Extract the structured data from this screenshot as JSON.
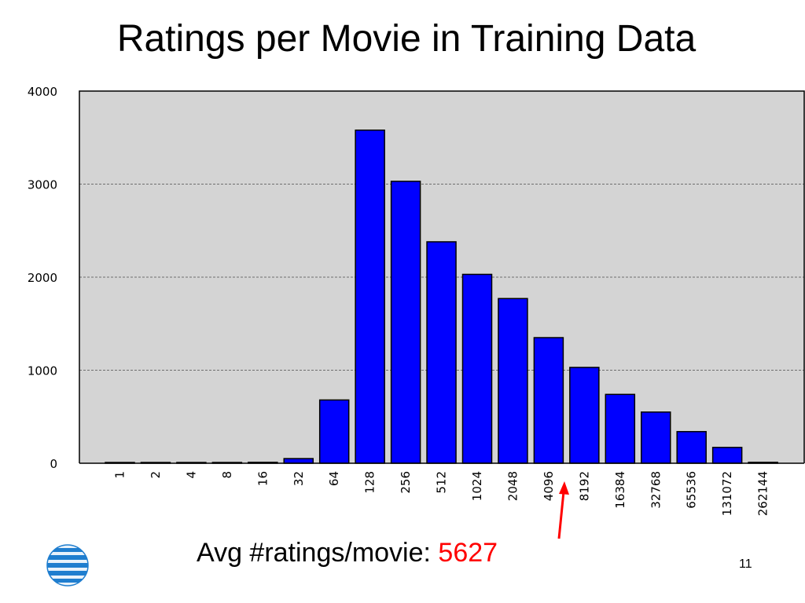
{
  "slide": {
    "title": "Ratings per Movie in Training Data",
    "caption_prefix": "Avg #ratings/movie: ",
    "caption_value": "5627",
    "page_number": "11"
  },
  "colors": {
    "plot_background": "#d4d4d4",
    "bar_fill": "#0000ff",
    "bar_stroke": "#000000",
    "arrow": "#ff0000",
    "caption_value": "#ff0000",
    "logo_blue": "#1f7ecf"
  },
  "logo": {
    "icon": "att-globe-icon"
  },
  "chart_data": {
    "type": "bar",
    "title": "",
    "xlabel": "",
    "ylabel": "",
    "categories": [
      "1",
      "2",
      "4",
      "8",
      "16",
      "32",
      "64",
      "128",
      "256",
      "512",
      "1024",
      "2048",
      "4096",
      "8192",
      "16384",
      "32768",
      "65536",
      "131072",
      "262144"
    ],
    "values": [
      0,
      0,
      8,
      8,
      10,
      50,
      680,
      3580,
      3030,
      2380,
      2030,
      1770,
      1350,
      1030,
      740,
      550,
      340,
      170,
      10
    ],
    "ylim": [
      0,
      4000
    ],
    "yticks": [
      "0",
      "1000",
      "2000",
      "3000",
      "4000"
    ],
    "grid": true,
    "legend": "none",
    "annotation": {
      "text": "Avg #ratings/movie: 5627",
      "points_between": [
        "4096",
        "8192"
      ]
    }
  }
}
